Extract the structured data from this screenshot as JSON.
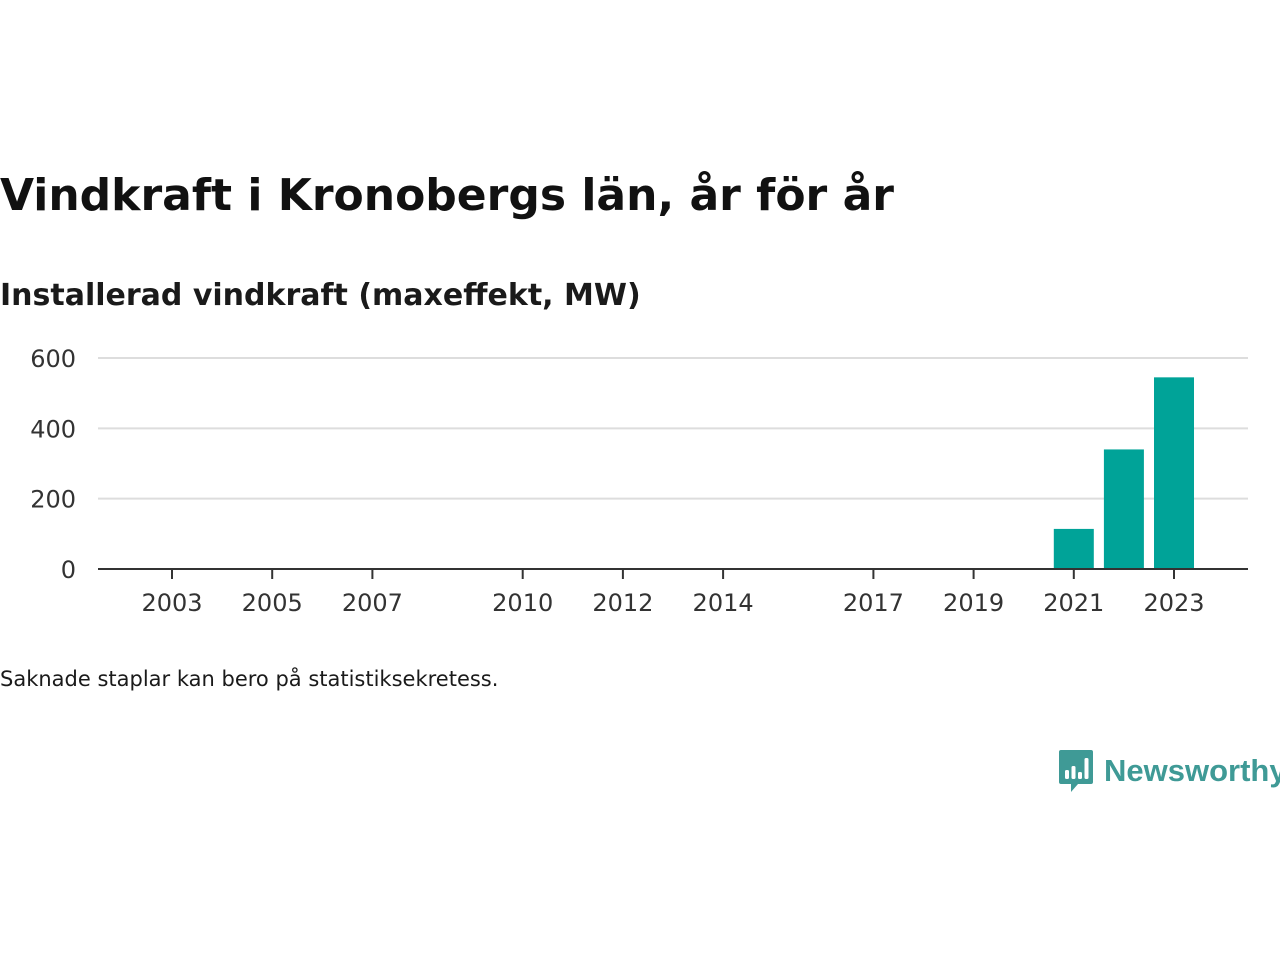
{
  "header": {
    "title": "Vindkraft i Kronobergs län, år för år",
    "subtitle": "Installerad vindkraft (maxeffekt, MW)"
  },
  "footnote": "Saknade staplar kan bero på statistiksekretess.",
  "brand": {
    "name": "Newsworthy",
    "color": "#3f9a96",
    "icon": "newsworthy-bar-chart-icon"
  },
  "colors": {
    "bar": "#00a398",
    "grid": "#dddddd",
    "axis": "#333333"
  },
  "chart_data": {
    "type": "bar",
    "categories": [
      "2003",
      "2004",
      "2005",
      "2006",
      "2007",
      "2008",
      "2009",
      "2010",
      "2011",
      "2012",
      "2013",
      "2014",
      "2015",
      "2016",
      "2017",
      "2018",
      "2019",
      "2020",
      "2021",
      "2022",
      "2023"
    ],
    "x_tick_labels": [
      "2003",
      "2005",
      "2007",
      "2010",
      "2012",
      "2014",
      "2017",
      "2019",
      "2021",
      "2023"
    ],
    "values": [
      null,
      null,
      null,
      null,
      null,
      null,
      null,
      null,
      null,
      null,
      null,
      null,
      null,
      null,
      null,
      null,
      null,
      null,
      114,
      340,
      545
    ],
    "y_ticks": [
      0,
      200,
      400,
      600
    ],
    "ylim": [
      0,
      600
    ],
    "grid": true,
    "legend": "none"
  }
}
